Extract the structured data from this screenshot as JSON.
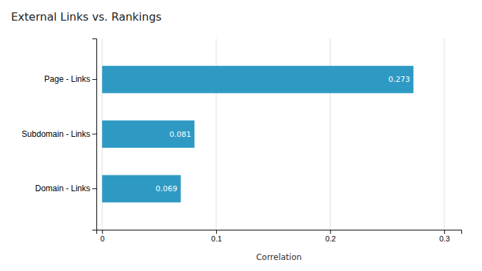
{
  "chart_data": {
    "type": "bar",
    "orientation": "horizontal",
    "title": "External Links vs. Rankings",
    "categories": [
      "Domain - Links",
      "Subdomain - Links",
      "Page - Links"
    ],
    "values": [
      0.069,
      0.081,
      0.273
    ],
    "color": "#2e9ac4",
    "xlabel": "Correlation",
    "xlim": [
      -0.005,
      0.315
    ],
    "xticks": [
      0,
      0.1,
      0.2,
      0.3
    ],
    "grid": true,
    "data_labels": true
  }
}
